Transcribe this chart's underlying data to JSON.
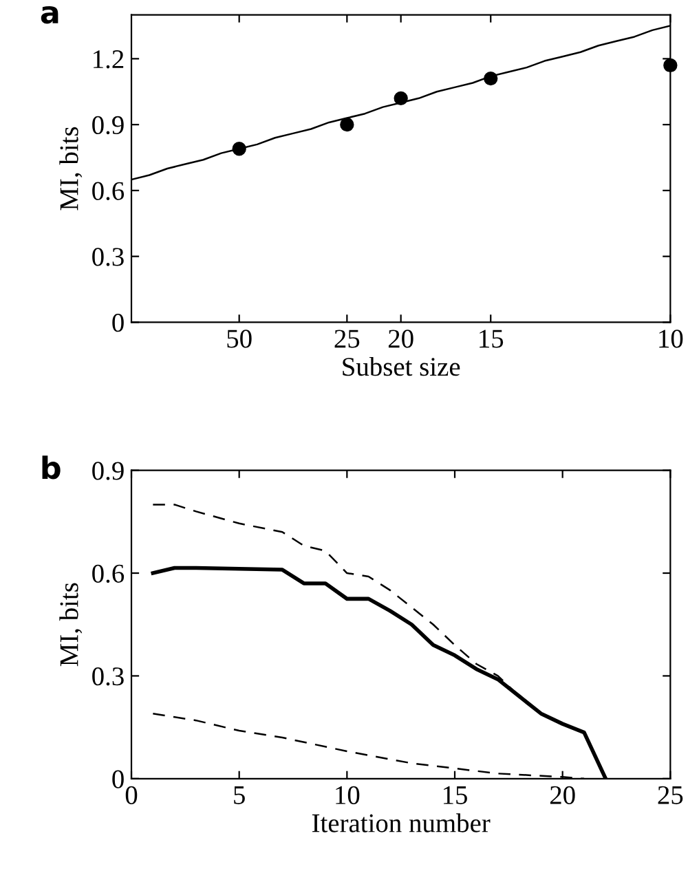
{
  "chart_data": [
    {
      "type": "scatter",
      "title": "a",
      "xlabel": "Subset size",
      "ylabel": "MI, bits",
      "categories": [
        null,
        null,
        null,
        null,
        null,
        null,
        "50",
        null,
        null,
        null,
        null,
        null,
        "25",
        null,
        null,
        "20",
        null,
        null,
        null,
        null,
        "15",
        null,
        null,
        null,
        null,
        null,
        null,
        null,
        null,
        null,
        "10"
      ],
      "ylim": [
        0,
        1.4
      ],
      "yticks": [
        0,
        0.3,
        0.6,
        0.9,
        1.2
      ],
      "grid": false,
      "series": [
        {
          "type": "scatter",
          "color": "#000000",
          "marker": "circle",
          "values": [
            null,
            null,
            null,
            null,
            null,
            null,
            0.79,
            null,
            null,
            null,
            null,
            null,
            0.9,
            null,
            null,
            1.02,
            null,
            null,
            null,
            null,
            1.11,
            null,
            null,
            null,
            null,
            null,
            null,
            null,
            null,
            null,
            1.17
          ]
        },
        {
          "type": "line",
          "color": "#000000",
          "line_style": "solid",
          "marker": "none",
          "values": [
            0.65,
            0.67,
            0.7,
            0.72,
            0.74,
            0.77,
            0.79,
            0.81,
            0.84,
            0.86,
            0.88,
            0.91,
            0.93,
            0.95,
            0.98,
            1.0,
            1.02,
            1.05,
            1.07,
            1.09,
            1.12,
            1.14,
            1.16,
            1.19,
            1.21,
            1.23,
            1.26,
            1.28,
            1.3,
            1.33,
            1.35
          ]
        }
      ]
    },
    {
      "type": "line",
      "title": "b",
      "xlabel": "Iteration number",
      "ylabel": "MI, bits",
      "xlim": [
        0,
        25
      ],
      "ylim": [
        0,
        0.9
      ],
      "xticks": [
        0,
        5,
        10,
        15,
        20,
        25
      ],
      "yticks": [
        0,
        0.3,
        0.6,
        0.9
      ],
      "grid": false,
      "series": [
        {
          "color": "#000000",
          "line_style": "dashed",
          "x": [
            1,
            2,
            3,
            5,
            7,
            8,
            9,
            10,
            11,
            12,
            13,
            14,
            15,
            16,
            17,
            18,
            19,
            20,
            21,
            22
          ],
          "values": [
            0.8,
            0.8,
            0.78,
            0.745,
            0.72,
            0.68,
            0.665,
            0.6,
            0.59,
            0.55,
            0.5,
            0.45,
            0.39,
            0.335,
            0.3,
            0.24,
            0.19,
            0.16,
            0.135,
            0
          ]
        },
        {
          "color": "#000000",
          "line_style": "solid",
          "x": [
            1,
            2,
            3,
            7,
            8,
            9,
            10,
            11,
            12,
            13,
            14,
            15,
            16,
            17,
            18,
            19,
            20,
            21,
            22
          ],
          "values": [
            0.6,
            0.615,
            0.615,
            0.61,
            0.57,
            0.57,
            0.525,
            0.525,
            0.49,
            0.45,
            0.39,
            0.36,
            0.32,
            0.29,
            0.24,
            0.19,
            0.16,
            0.135,
            0
          ]
        },
        {
          "color": "#000000",
          "line_style": "dashed",
          "x": [
            1,
            3,
            5,
            7,
            10,
            13,
            15,
            17,
            20,
            21
          ],
          "values": [
            0.19,
            0.17,
            0.14,
            0.12,
            0.08,
            0.045,
            0.03,
            0.015,
            0.005,
            0
          ]
        }
      ]
    }
  ]
}
